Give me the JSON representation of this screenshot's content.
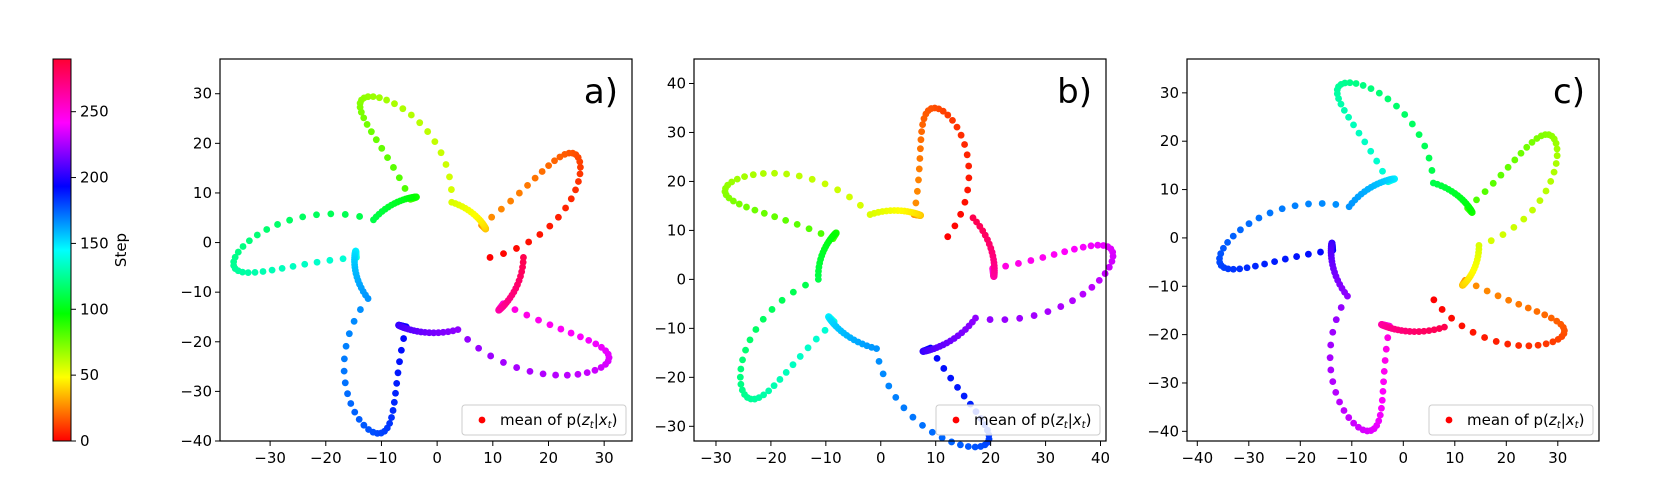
{
  "colorbar": {
    "label": "Step",
    "min": 0,
    "max": 290,
    "ticks": [
      0,
      50,
      100,
      150,
      200,
      250
    ],
    "colormap": "hsv"
  },
  "chart_data": [
    {
      "type": "scatter",
      "panel_label": "a)",
      "xlim": [
        -39,
        35
      ],
      "ylim": [
        -40,
        37
      ],
      "xticks": [
        -30,
        -20,
        -10,
        0,
        10,
        20,
        30
      ],
      "yticks": [
        -40,
        -30,
        -20,
        -10,
        0,
        10,
        20,
        30
      ],
      "legend": {
        "label": "mean of p(zt|xt)",
        "position": "lower-right"
      },
      "spiral": {
        "center": [
          -1,
          -3
        ],
        "r0": 10.5,
        "arms": 10,
        "rotation_deg": 0,
        "steps": 290,
        "arm_growth": 2.8,
        "radial_growth": 0.095
      },
      "grid": false
    },
    {
      "type": "scatter",
      "panel_label": "b)",
      "xlim": [
        -34,
        41
      ],
      "ylim": [
        -33,
        45
      ],
      "xticks": [
        -30,
        -20,
        -10,
        0,
        10,
        20,
        30,
        40
      ],
      "yticks": [
        -30,
        -20,
        -10,
        0,
        10,
        20,
        30,
        40
      ],
      "legend": {
        "label": "mean of p(zt|xt)",
        "position": "lower-right"
      },
      "spiral": {
        "center": [
          3,
          1
        ],
        "r0": 12,
        "arms": 10,
        "rotation_deg": 40,
        "steps": 290,
        "arm_growth": 2.8,
        "radial_growth": 0.095
      },
      "grid": false
    },
    {
      "type": "scatter",
      "panel_label": "c)",
      "xlim": [
        -42,
        38
      ],
      "ylim": [
        -42,
        37
      ],
      "xticks": [
        -40,
        -30,
        -20,
        -10,
        0,
        10,
        20,
        30
      ],
      "yticks": [
        -40,
        -30,
        -20,
        -10,
        0,
        10,
        20,
        30
      ],
      "legend": {
        "label": "mean of p(zt|xt)",
        "position": "lower-right"
      },
      "spiral": {
        "center": [
          2,
          -2
        ],
        "r0": 11.5,
        "arms": 10,
        "rotation_deg": -70,
        "steps": 290,
        "arm_growth": 2.8,
        "radial_growth": 0.095
      },
      "grid": false
    }
  ]
}
